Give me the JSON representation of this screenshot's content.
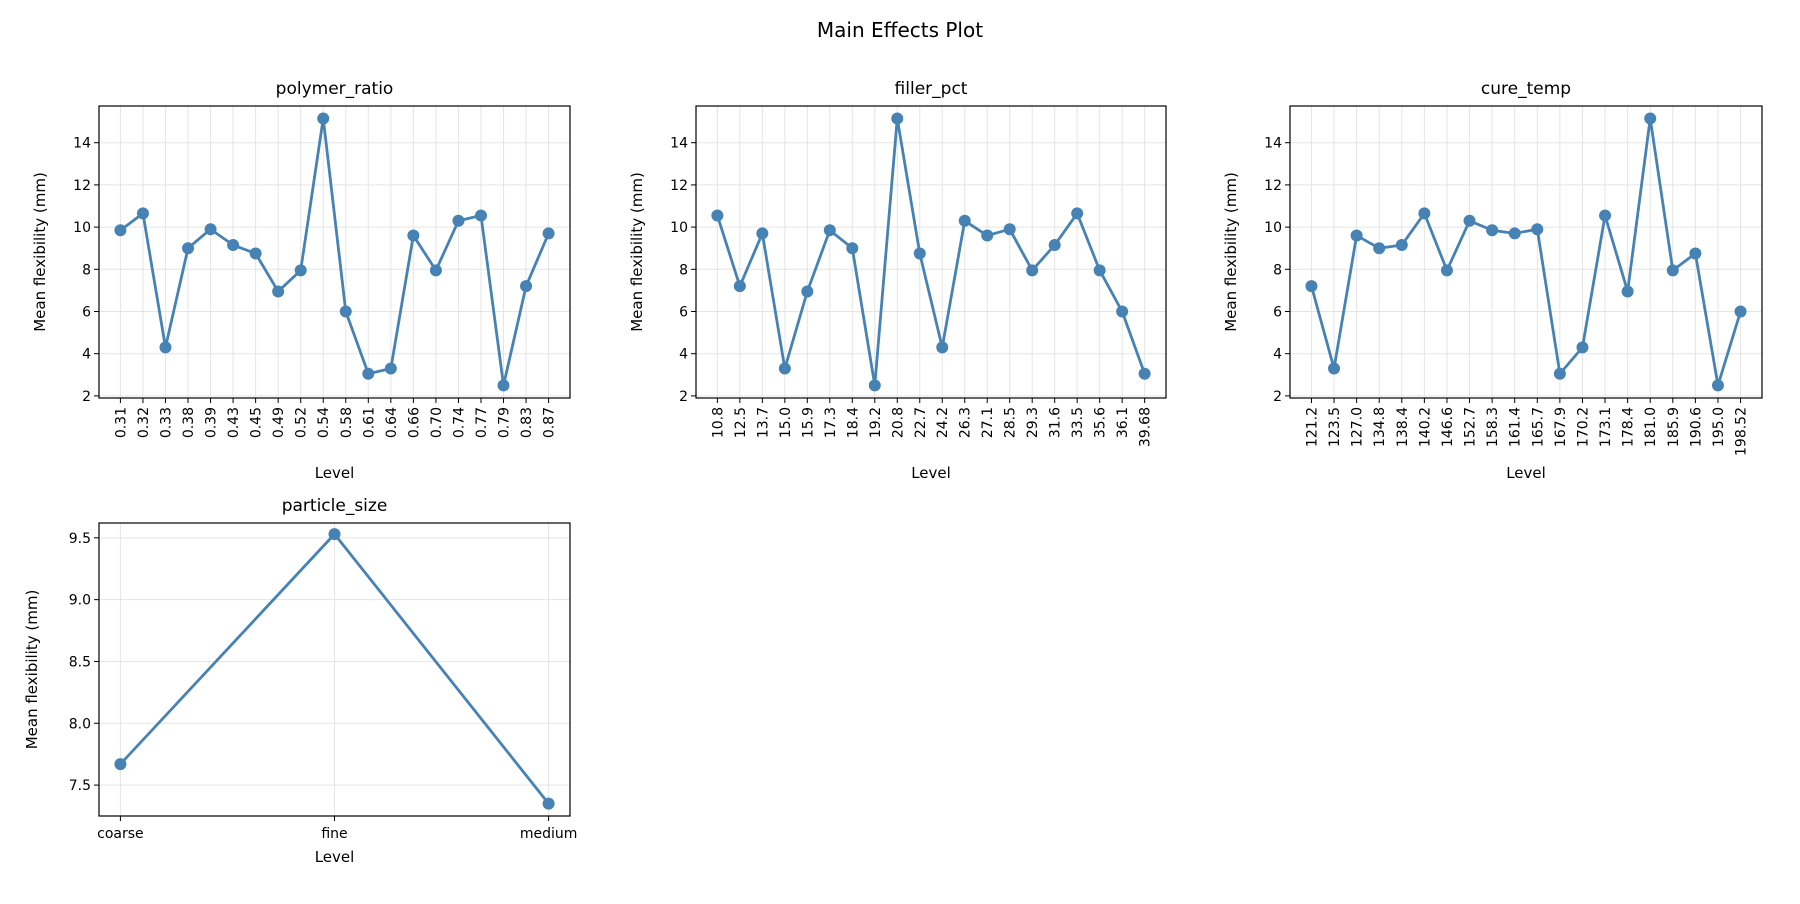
{
  "title": "Main Effects Plot",
  "colors": {
    "line": "#4682b4",
    "grid": "#e5e5e5",
    "axis": "#000000"
  },
  "chart_data": [
    {
      "type": "line",
      "title": "polymer_ratio",
      "xlabel": "Level",
      "ylabel": "Mean flexibility (mm)",
      "ylim": [
        1.9,
        15.74
      ],
      "yticks": [
        2,
        4,
        6,
        8,
        10,
        12,
        14
      ],
      "grid": true,
      "categories": [
        "0.31",
        "0.32",
        "0.33",
        "0.38",
        "0.39",
        "0.43",
        "0.45",
        "0.49",
        "0.52",
        "0.54",
        "0.58",
        "0.61",
        "0.64",
        "0.66",
        "0.70",
        "0.74",
        "0.77",
        "0.79",
        "0.83",
        "0.87"
      ],
      "values": [
        9.85,
        10.65,
        4.3,
        9.0,
        9.9,
        9.15,
        8.75,
        6.95,
        7.95,
        15.15,
        6.0,
        3.05,
        3.3,
        9.6,
        7.95,
        10.3,
        10.55,
        2.5,
        7.2,
        9.7
      ]
    },
    {
      "type": "line",
      "title": "filler_pct",
      "xlabel": "Level",
      "ylabel": "Mean flexibility (mm)",
      "ylim": [
        1.9,
        15.74
      ],
      "yticks": [
        2,
        4,
        6,
        8,
        10,
        12,
        14
      ],
      "grid": true,
      "categories": [
        "10.8",
        "12.5",
        "13.7",
        "15.0",
        "15.9",
        "17.3",
        "18.4",
        "19.2",
        "20.8",
        "22.7",
        "24.2",
        "26.3",
        "27.1",
        "28.5",
        "29.3",
        "31.6",
        "33.5",
        "35.6",
        "36.1",
        "39.68"
      ],
      "values": [
        10.55,
        7.2,
        9.7,
        3.3,
        6.95,
        9.85,
        9.0,
        2.5,
        15.15,
        8.75,
        4.3,
        10.3,
        9.6,
        9.9,
        7.95,
        9.15,
        10.65,
        7.95,
        6.0,
        3.05
      ]
    },
    {
      "type": "line",
      "title": "cure_temp",
      "xlabel": "Level",
      "ylabel": "Mean flexibility (mm)",
      "ylim": [
        1.9,
        15.74
      ],
      "yticks": [
        2,
        4,
        6,
        8,
        10,
        12,
        14
      ],
      "grid": true,
      "categories": [
        "121.2",
        "123.5",
        "127.0",
        "134.8",
        "138.4",
        "140.2",
        "146.6",
        "152.7",
        "158.3",
        "161.4",
        "165.7",
        "167.9",
        "170.2",
        "173.1",
        "178.4",
        "181.0",
        "185.9",
        "190.6",
        "195.0",
        "198.52"
      ],
      "values": [
        7.2,
        3.3,
        9.6,
        9.0,
        9.15,
        10.65,
        7.95,
        10.3,
        9.85,
        9.7,
        9.9,
        3.05,
        4.3,
        10.55,
        6.95,
        15.15,
        7.95,
        8.75,
        2.5,
        6.0
      ]
    },
    {
      "type": "line",
      "title": "particle_size",
      "xlabel": "Level",
      "ylabel": "Mean flexibility (mm)",
      "ylim": [
        7.25,
        9.62
      ],
      "yticks": [
        "7.5",
        "8.0",
        "8.5",
        "9.0",
        "9.5"
      ],
      "grid": true,
      "categories": [
        "coarse",
        "fine",
        "medium"
      ],
      "values": [
        7.67,
        9.53,
        7.35
      ]
    }
  ]
}
